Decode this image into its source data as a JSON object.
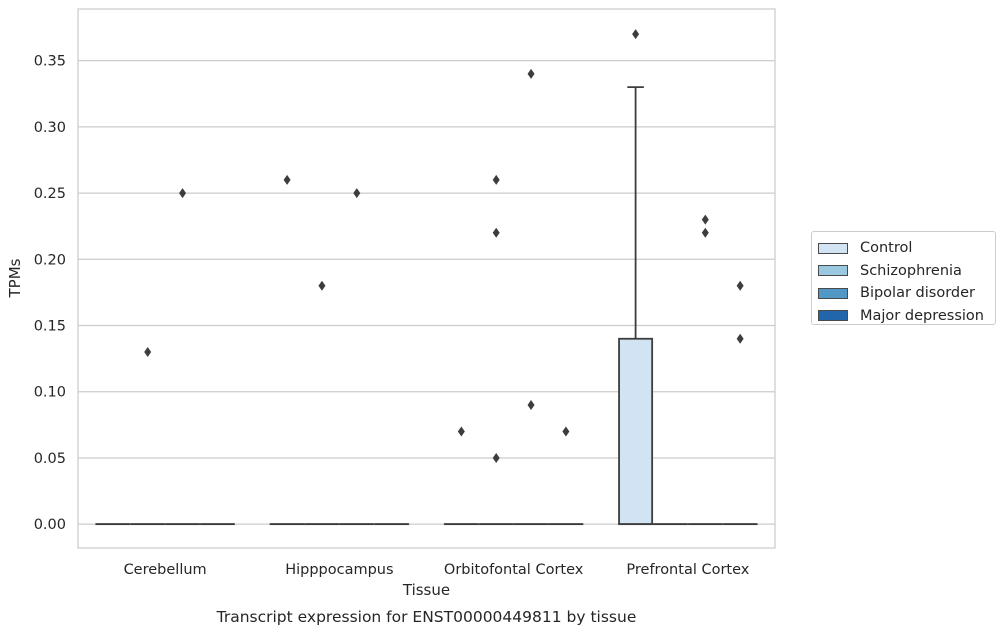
{
  "chart_data": {
    "type": "box",
    "title": "Transcript expression for ENST00000449811 by tissue",
    "xlabel": "Tissue",
    "ylabel": "TPMs",
    "ylim": [
      -0.018,
      0.389
    ],
    "yticks": [
      "0.00",
      "0.05",
      "0.10",
      "0.15",
      "0.20",
      "0.25",
      "0.30",
      "0.35"
    ],
    "categories": [
      "Cerebellum",
      "Hipppocampus",
      "Orbitofontal Cortex",
      "Prefrontal Cortex"
    ],
    "legend_position": "right",
    "grid": true,
    "series": [
      {
        "name": "Control",
        "color": "#d2e3f3",
        "boxes": [
          {
            "q1": 0,
            "median": 0,
            "q3": 0,
            "whisker_low": 0,
            "whisker_high": 0,
            "outliers": []
          },
          {
            "q1": 0,
            "median": 0,
            "q3": 0,
            "whisker_low": 0,
            "whisker_high": 0,
            "outliers": [
              0.26
            ]
          },
          {
            "q1": 0,
            "median": 0,
            "q3": 0,
            "whisker_low": 0,
            "whisker_high": 0,
            "outliers": [
              0.07
            ]
          },
          {
            "q1": 0,
            "median": 0,
            "q3": 0.14,
            "whisker_low": 0,
            "whisker_high": 0.33,
            "outliers": [
              0.37
            ]
          }
        ]
      },
      {
        "name": "Schizophrenia",
        "color": "#9ac8e1",
        "boxes": [
          {
            "q1": 0,
            "median": 0,
            "q3": 0,
            "whisker_low": 0,
            "whisker_high": 0,
            "outliers": [
              0.13
            ]
          },
          {
            "q1": 0,
            "median": 0,
            "q3": 0,
            "whisker_low": 0,
            "whisker_high": 0,
            "outliers": [
              0.18
            ]
          },
          {
            "q1": 0,
            "median": 0,
            "q3": 0,
            "whisker_low": 0,
            "whisker_high": 0,
            "outliers": [
              0.26,
              0.22,
              0.05
            ]
          },
          {
            "q1": 0,
            "median": 0,
            "q3": 0,
            "whisker_low": 0,
            "whisker_high": 0,
            "outliers": []
          }
        ]
      },
      {
        "name": "Bipolar disorder",
        "color": "#5298c6",
        "boxes": [
          {
            "q1": 0,
            "median": 0,
            "q3": 0,
            "whisker_low": 0,
            "whisker_high": 0,
            "outliers": [
              0.25
            ]
          },
          {
            "q1": 0,
            "median": 0,
            "q3": 0,
            "whisker_low": 0,
            "whisker_high": 0,
            "outliers": [
              0.25
            ]
          },
          {
            "q1": 0,
            "median": 0,
            "q3": 0,
            "whisker_low": 0,
            "whisker_high": 0,
            "outliers": [
              0.34,
              0.09
            ]
          },
          {
            "q1": 0,
            "median": 0,
            "q3": 0,
            "whisker_low": 0,
            "whisker_high": 0,
            "outliers": [
              0.23,
              0.22
            ]
          }
        ]
      },
      {
        "name": "Major depression",
        "color": "#2166ab",
        "boxes": [
          {
            "q1": 0,
            "median": 0,
            "q3": 0,
            "whisker_low": 0,
            "whisker_high": 0,
            "outliers": []
          },
          {
            "q1": 0,
            "median": 0,
            "q3": 0,
            "whisker_low": 0,
            "whisker_high": 0,
            "outliers": []
          },
          {
            "q1": 0,
            "median": 0,
            "q3": 0,
            "whisker_low": 0,
            "whisker_high": 0,
            "outliers": [
              0.07
            ]
          },
          {
            "q1": 0,
            "median": 0,
            "q3": 0,
            "whisker_low": 0,
            "whisker_high": 0,
            "outliers": [
              0.18,
              0.14
            ]
          }
        ]
      }
    ]
  }
}
